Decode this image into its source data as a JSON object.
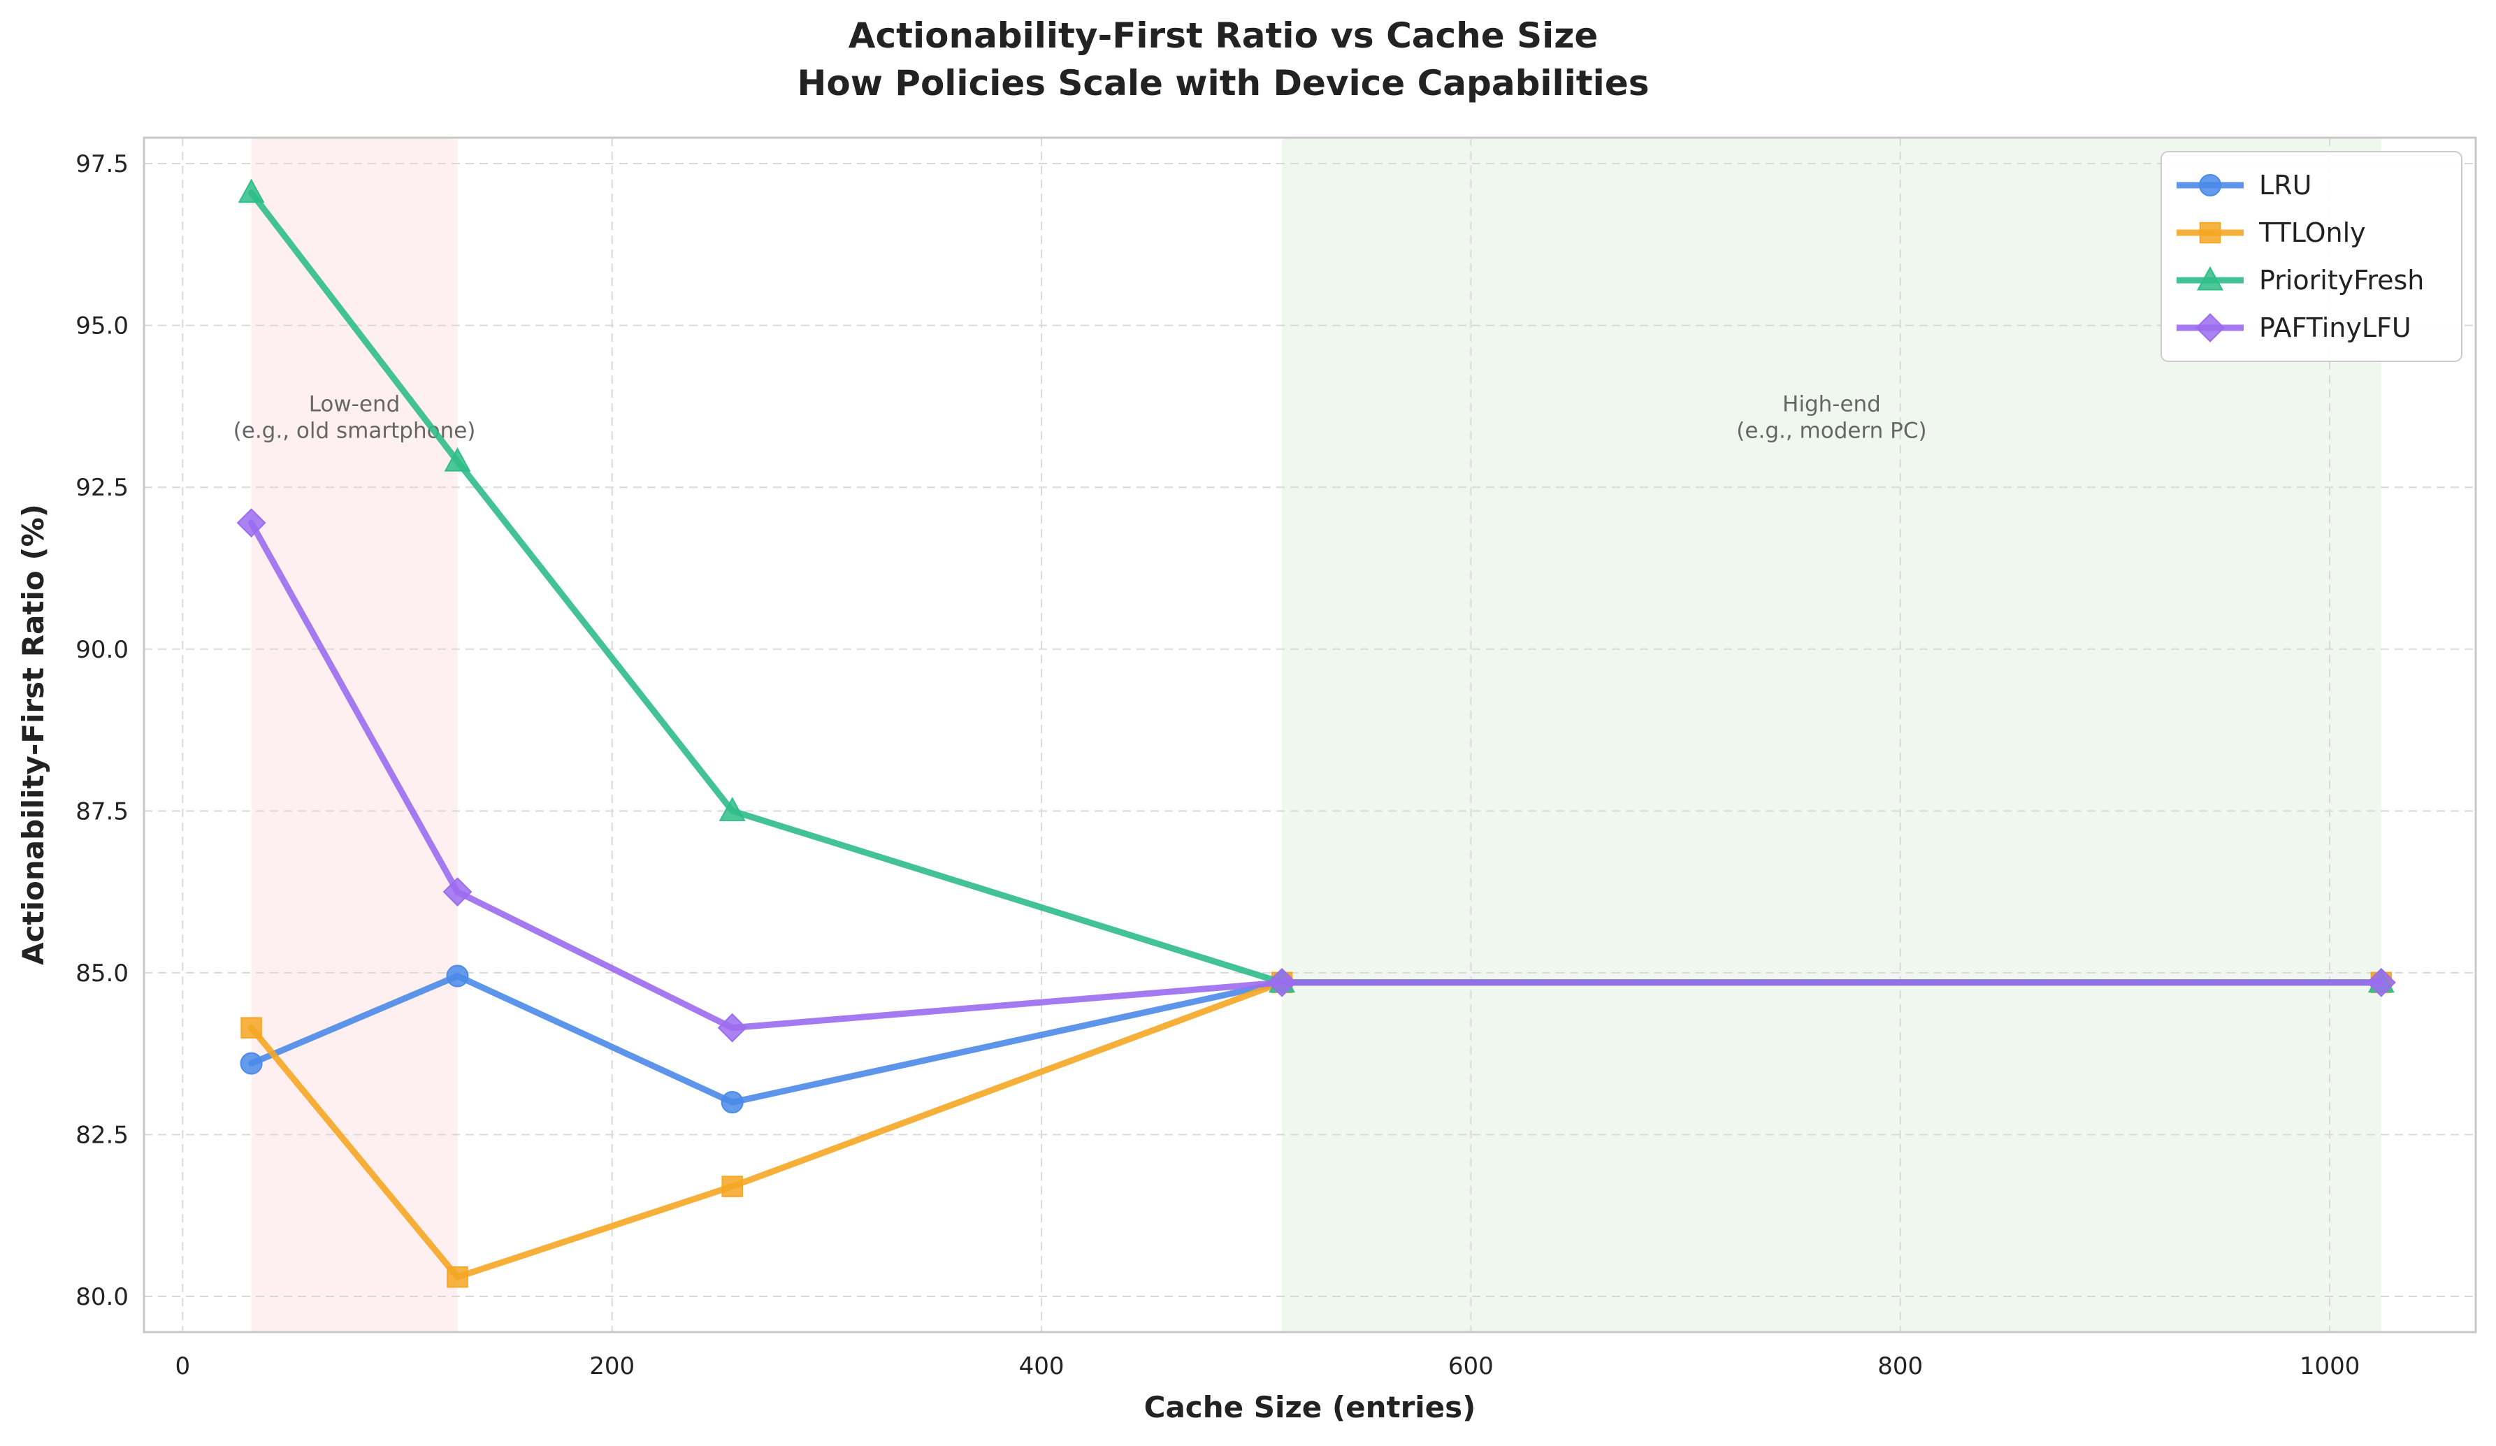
{
  "chart_data": {
    "type": "line",
    "title": "Actionability-First Ratio vs Cache Size",
    "subtitle": "How Policies Scale with Device Capabilities",
    "xlabel": "Cache Size (entries)",
    "ylabel": "Actionability-First Ratio (%)",
    "xlim": [
      -18,
      1068
    ],
    "ylim": [
      79.45,
      97.9
    ],
    "xticks": [
      0,
      200,
      400,
      600,
      800,
      1000
    ],
    "yticks": [
      80.0,
      82.5,
      85.0,
      87.5,
      90.0,
      92.5,
      95.0,
      97.5
    ],
    "grid": true,
    "legend_position": "top-right",
    "x": [
      32,
      128,
      256,
      512,
      1024
    ],
    "series": [
      {
        "name": "LRU",
        "color": "#4a8ae8",
        "marker": "circle",
        "values": [
          83.6,
          84.95,
          83.0,
          84.85,
          84.85
        ]
      },
      {
        "name": "TTLOnly",
        "color": "#f5a623",
        "marker": "square",
        "values": [
          84.15,
          80.3,
          81.7,
          84.85,
          84.85
        ]
      },
      {
        "name": "PriorityFresh",
        "color": "#2fbd8a",
        "marker": "triangle",
        "values": [
          97.05,
          92.9,
          87.5,
          84.85,
          84.85
        ]
      },
      {
        "name": "PAFTinyLFU",
        "color": "#9b6cf0",
        "marker": "diamond",
        "values": [
          91.95,
          86.25,
          84.15,
          84.85,
          84.85
        ]
      }
    ],
    "regions": [
      {
        "x0": 32,
        "x1": 128,
        "color": "#fde3e3",
        "label_line1": "Low-end",
        "label_line2": "(e.g., old smartphone)",
        "label_x": 80,
        "label_y": 93.5
      },
      {
        "x0": 512,
        "x1": 1024,
        "color": "#e4f1e2",
        "label_line1": "High-end",
        "label_line2": "(e.g., modern PC)",
        "label_x": 768,
        "label_y": 93.5
      }
    ]
  }
}
